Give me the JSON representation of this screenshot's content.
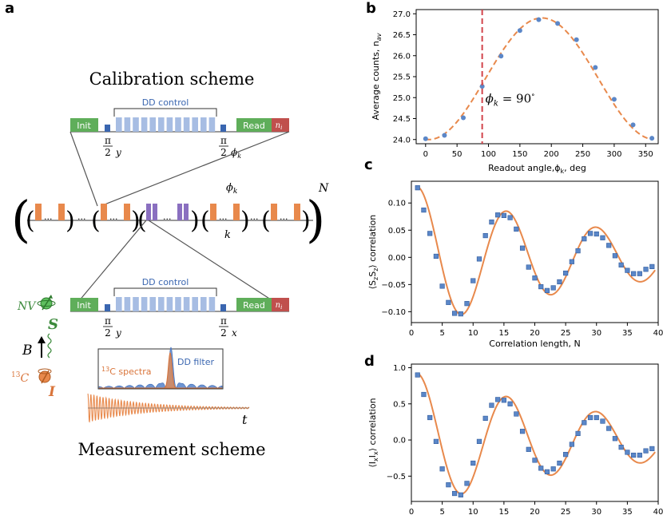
{
  "panel_labels": {
    "a": "a",
    "b": "b",
    "c": "c",
    "d": "d"
  },
  "schematic": {
    "calibration_title": "Calibration scheme",
    "measurement_title": "Measurement scheme",
    "init_label": "Init",
    "dd_label": "DD control",
    "read_label": "Read",
    "ni_label": "n",
    "ni_sub": "i",
    "pi": "π",
    "two_y": "2",
    "y_sub": "y",
    "phi_sub": "ϕ",
    "phi_k_sub": "k",
    "x_sub": "x",
    "phi_k_label": "ϕ",
    "phi_k_label_sub": "k",
    "k_label": "k",
    "N_label": "N",
    "ellipsis": "···",
    "nv_label": "NV",
    "s_label": "S",
    "b_label": "B",
    "c13_sup": "13",
    "c13_label": "C",
    "i_label": "I",
    "c13_spectra_sup": "13",
    "c13_spectra_label": "C spectra",
    "dd_filter_label": "DD filter",
    "t_label": "t",
    "colors": {
      "init": "#5fae5a",
      "dd": "#a7bde3",
      "read": "#5fae5a",
      "ni": "#c0504d",
      "small_pulse": "#3a66b0",
      "orange_pulse": "#e8894c",
      "purple_pulse": "#8a6fc0",
      "nv_green": "#3c8a3c",
      "c13_orange": "#d9743a"
    }
  },
  "chart_data": [
    {
      "id": "b",
      "type": "scatter",
      "title": "",
      "xlabel": "Readout angle,ϕ",
      "xlabel_sub": "k",
      "xlabel_suffix": ", deg",
      "ylabel": "Average counts, n",
      "ylabel_sub": "av",
      "xlim": [
        -15,
        370
      ],
      "ylim": [
        23.9,
        27.1
      ],
      "xticks": [
        0,
        50,
        100,
        150,
        200,
        250,
        300,
        350
      ],
      "yticks": [
        24.0,
        24.5,
        25.0,
        25.5,
        26.0,
        26.5,
        27.0
      ],
      "ytick_labels": [
        "24.0",
        "24.5",
        "25.0",
        "25.5",
        "26.0",
        "26.5",
        "27.0"
      ],
      "x": [
        0,
        30,
        60,
        90,
        120,
        150,
        180,
        210,
        240,
        270,
        300,
        330,
        360
      ],
      "y": [
        24.02,
        24.1,
        24.52,
        25.27,
        25.99,
        26.6,
        26.86,
        26.77,
        26.38,
        25.72,
        24.96,
        24.35,
        24.03
      ],
      "fit": {
        "style": "dashed",
        "color": "#e8894c",
        "offset": 25.45,
        "amplitude": 1.45,
        "peak_deg": 185
      },
      "vline": {
        "x": 90,
        "color": "#d2434b",
        "style": "dashed"
      },
      "annotation": {
        "text": "ϕ",
        "sub": "k",
        "suffix": " = 90",
        "deg": "∘"
      },
      "point_color": "#5b87c8"
    },
    {
      "id": "c",
      "type": "scatter",
      "title": "",
      "xlabel": "Correlation length, N",
      "ylabel": "⟨S",
      "ylabel_sub1": "z",
      "ylabel_mid": "S",
      "ylabel_sub2": "z",
      "ylabel_suffix": "⟩ correlation",
      "xlim": [
        0,
        40
      ],
      "ylim": [
        -0.12,
        0.14
      ],
      "xticks": [
        0,
        5,
        10,
        15,
        20,
        25,
        30,
        35,
        40
      ],
      "yticks": [
        -0.1,
        -0.05,
        0.0,
        0.05,
        0.1
      ],
      "ytick_labels": [
        "−0.10",
        "−0.05",
        "0.00",
        "0.05",
        "0.10"
      ],
      "x": [
        1,
        2,
        3,
        4,
        5,
        6,
        7,
        8,
        9,
        10,
        11,
        12,
        13,
        14,
        15,
        16,
        17,
        18,
        19,
        20,
        21,
        22,
        23,
        24,
        25,
        26,
        27,
        28,
        29,
        30,
        31,
        32,
        33,
        34,
        35,
        36,
        37,
        38,
        39
      ],
      "y": [
        0.128,
        0.087,
        0.044,
        0.002,
        -0.053,
        -0.083,
        -0.103,
        -0.104,
        -0.085,
        -0.043,
        -0.003,
        0.04,
        0.065,
        0.078,
        0.077,
        0.073,
        0.052,
        0.017,
        -0.018,
        -0.038,
        -0.054,
        -0.061,
        -0.056,
        -0.045,
        -0.029,
        -0.008,
        0.012,
        0.034,
        0.044,
        0.043,
        0.036,
        0.022,
        0.003,
        -0.014,
        -0.024,
        -0.03,
        -0.03,
        -0.022,
        -0.017
      ],
      "fit": {
        "color": "#e8894c",
        "amplitude": 0.13,
        "period": 14.5,
        "decay": 34,
        "start": 1
      },
      "point_color": "#5b87c8"
    },
    {
      "id": "d",
      "type": "scatter",
      "title": "",
      "xlabel": "Correlation length, N",
      "ylabel": "⟨I",
      "ylabel_sub1": "x",
      "ylabel_mid": "I",
      "ylabel_sub2": "x",
      "ylabel_suffix": "⟩ correlation",
      "xlim": [
        0,
        40
      ],
      "ylim": [
        -0.85,
        1.05
      ],
      "xticks": [
        0,
        5,
        10,
        15,
        20,
        25,
        30,
        35,
        40
      ],
      "yticks": [
        -0.5,
        0.0,
        0.5,
        1.0
      ],
      "ytick_labels": [
        "−0.5",
        "0.0",
        "0.5",
        "1.0"
      ],
      "x": [
        1,
        2,
        3,
        4,
        5,
        6,
        7,
        8,
        9,
        10,
        11,
        12,
        13,
        14,
        15,
        16,
        17,
        18,
        19,
        20,
        21,
        22,
        23,
        24,
        25,
        26,
        27,
        28,
        29,
        30,
        31,
        32,
        33,
        34,
        35,
        36,
        37,
        38,
        39
      ],
      "y": [
        0.9,
        0.63,
        0.31,
        -0.02,
        -0.4,
        -0.62,
        -0.74,
        -0.76,
        -0.6,
        -0.32,
        -0.02,
        0.3,
        0.48,
        0.56,
        0.55,
        0.5,
        0.36,
        0.12,
        -0.13,
        -0.28,
        -0.39,
        -0.44,
        -0.4,
        -0.32,
        -0.2,
        -0.06,
        0.09,
        0.24,
        0.31,
        0.31,
        0.26,
        0.16,
        0.02,
        -0.1,
        -0.17,
        -0.21,
        -0.21,
        -0.15,
        -0.12
      ],
      "fit": {
        "color": "#e8894c",
        "amplitude": 0.92,
        "period": 14.5,
        "decay": 34,
        "start": 1
      },
      "point_color": "#5b87c8"
    }
  ]
}
